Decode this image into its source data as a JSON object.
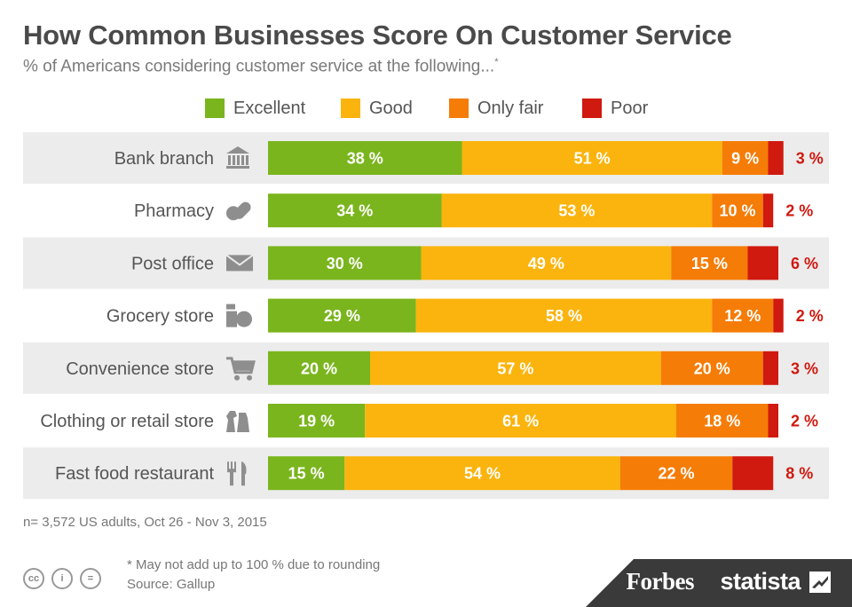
{
  "title": "How Common Businesses Score On Customer Service",
  "subtitle": "% of Americans considering customer service at the following...",
  "subtitle_mark": "*",
  "legend": [
    {
      "label": "Excellent",
      "color": "#7ab51d"
    },
    {
      "label": "Good",
      "color": "#fbb40d"
    },
    {
      "label": "Only fair",
      "color": "#f57c06"
    },
    {
      "label": "Poor",
      "color": "#d0190f"
    }
  ],
  "chart_data": {
    "type": "bar",
    "orientation": "horizontal",
    "stacked": true,
    "title": "How Common Businesses Score On Customer Service",
    "subtitle": "% of Americans considering customer service at the following...",
    "categories": [
      "Bank branch",
      "Pharmacy",
      "Post office",
      "Grocery store",
      "Convenience store",
      "Clothing or retail store",
      "Fast food restaurant"
    ],
    "icons": [
      "bank-icon",
      "pills-icon",
      "envelope-icon",
      "grocery-icon",
      "cart-icon",
      "clothing-icon",
      "fork-knife-icon"
    ],
    "series": [
      {
        "name": "Excellent",
        "color": "#7ab51d",
        "values": [
          38,
          34,
          30,
          29,
          20,
          19,
          15
        ]
      },
      {
        "name": "Good",
        "color": "#fbb40d",
        "values": [
          51,
          53,
          49,
          58,
          57,
          61,
          54
        ]
      },
      {
        "name": "Only fair",
        "color": "#f57c06",
        "values": [
          9,
          10,
          15,
          12,
          20,
          18,
          22
        ]
      },
      {
        "name": "Poor",
        "color": "#d0190f",
        "values": [
          3,
          2,
          6,
          2,
          3,
          2,
          8
        ]
      }
    ],
    "value_suffix": " %",
    "legend_position": "top"
  },
  "sample_note": "n= 3,572 US adults, Oct 26 - Nov 3, 2015",
  "footnote": "* May not add up to 100 % due to rounding",
  "source": "Source: Gallup",
  "license_icons": [
    "cc-icon",
    "by-icon",
    "nd-icon"
  ],
  "license_glyphs": [
    "cc",
    "i",
    "="
  ],
  "brands": {
    "forbes": "Forbes",
    "statista": "statista"
  }
}
